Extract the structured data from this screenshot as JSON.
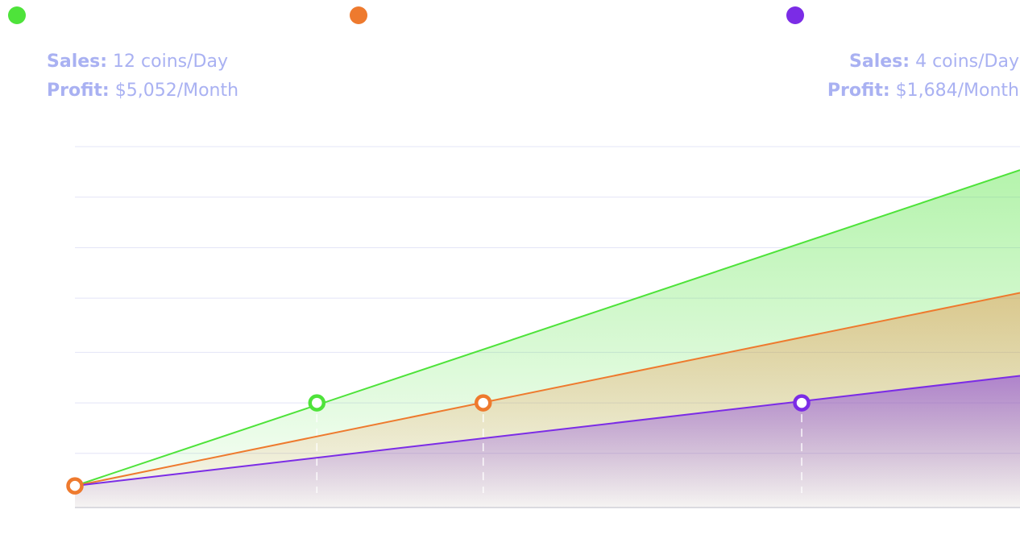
{
  "colors": {
    "background": "#ffffff",
    "info_text": "#a9b1f2",
    "grid": "#e3e4f7",
    "axis": "#cfd0d8",
    "green": "#4ee33a",
    "orange": "#ee7a2e",
    "purple": "#7b2ce6"
  },
  "legend": [
    {
      "color": "#4ee33a"
    },
    {
      "color": "#ee7a2e"
    },
    {
      "color": "#7b2ce6"
    }
  ],
  "info_left": {
    "sales_label": "Sales:",
    "sales_value": "12 coins/Day",
    "profit_label": "Profit:",
    "profit_value": "$5,052/Month"
  },
  "info_right": {
    "sales_label": "Sales:",
    "sales_value": "4 coins/Day",
    "profit_label": "Profit:",
    "profit_value": "$1,684/Month"
  },
  "chart_data": {
    "type": "area",
    "title": "",
    "xlabel": "",
    "ylabel": "",
    "xlim": [
      0,
      1
    ],
    "ylim": [
      0,
      1
    ],
    "grid": "horizontal",
    "legend": "top",
    "series": [
      {
        "color": "#4ee33a",
        "x": [
          0,
          1
        ],
        "values": [
          0.06,
          0.935
        ],
        "marker_x": 0.256,
        "marker_y": 0.29
      },
      {
        "color": "#ee7a2e",
        "x": [
          0,
          1
        ],
        "values": [
          0.06,
          0.595
        ],
        "marker_x": 0.432,
        "marker_y": 0.29
      },
      {
        "color": "#7b2ce6",
        "x": [
          0,
          1
        ],
        "values": [
          0.06,
          0.365
        ],
        "marker_x": 0.769,
        "marker_y": 0.29
      }
    ],
    "start_marker": {
      "x": 0,
      "y": 0.06,
      "color": "#ee7a2e"
    }
  }
}
